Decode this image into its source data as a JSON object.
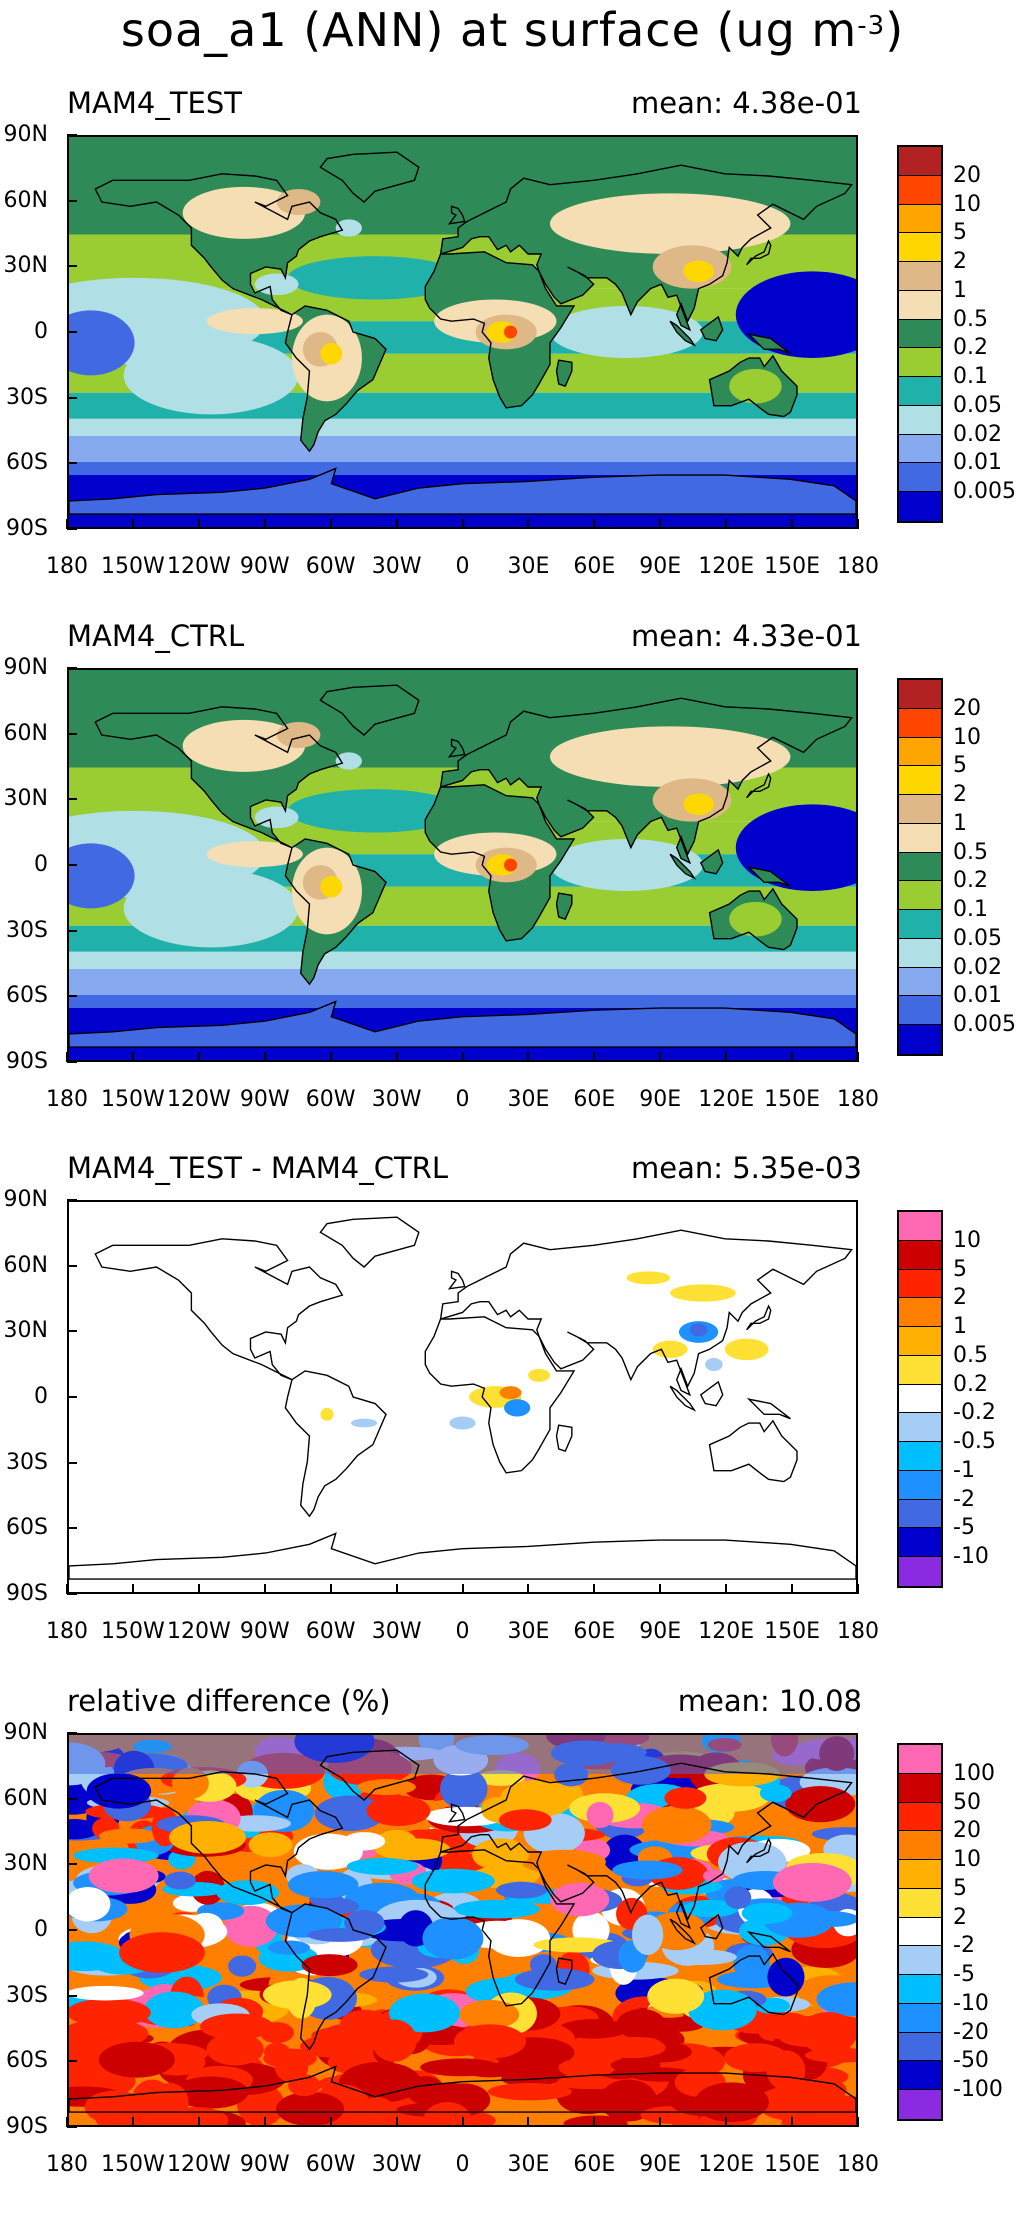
{
  "figure": {
    "title": "soa_a1 (ANN) at surface (ug m",
    "title_superscript": "-3",
    "title_close": ")"
  },
  "lat_labels": [
    "90N",
    "60N",
    "30N",
    "0",
    "30S",
    "60S",
    "90S"
  ],
  "lon_labels": [
    "180",
    "150W",
    "120W",
    "90W",
    "60W",
    "30W",
    "0",
    "30E",
    "60E",
    "90E",
    "120E",
    "150E",
    "180"
  ],
  "panels": [
    {
      "title": "MAM4_TEST",
      "mean": "mean: 4.38e-01",
      "field": "absolute",
      "colorbar": {
        "colors": [
          "#b22222",
          "#ff4500",
          "#ffa500",
          "#ffd700",
          "#deb887",
          "#f5deb3",
          "#2e8b57",
          "#9acd32",
          "#20b2aa",
          "#b0e0e6",
          "#87a9f0",
          "#4169e1",
          "#0000cd"
        ],
        "labels": [
          "20",
          "10",
          "5",
          "2",
          "1",
          "0.5",
          "0.2",
          "0.1",
          "0.05",
          "0.02",
          "0.01",
          "0.005"
        ]
      }
    },
    {
      "title": "MAM4_CTRL",
      "mean": "mean: 4.33e-01",
      "field": "absolute",
      "colorbar": {
        "colors": [
          "#b22222",
          "#ff4500",
          "#ffa500",
          "#ffd700",
          "#deb887",
          "#f5deb3",
          "#2e8b57",
          "#9acd32",
          "#20b2aa",
          "#b0e0e6",
          "#87a9f0",
          "#4169e1",
          "#0000cd"
        ],
        "labels": [
          "20",
          "10",
          "5",
          "2",
          "1",
          "0.5",
          "0.2",
          "0.1",
          "0.05",
          "0.02",
          "0.01",
          "0.005"
        ]
      }
    },
    {
      "title": "MAM4_TEST - MAM4_CTRL",
      "mean": "mean: 5.35e-03",
      "field": "difference",
      "colorbar": {
        "colors": [
          "#ff69b4",
          "#cd0000",
          "#ff2400",
          "#ff7f00",
          "#ffb000",
          "#ffe135",
          "#ffffff",
          "#a5cdf5",
          "#00bfff",
          "#1e90ff",
          "#4169e1",
          "#0000cd",
          "#8a2be2"
        ],
        "labels": [
          "10",
          "5",
          "2",
          "1",
          "0.5",
          "0.2",
          "-0.2",
          "-0.5",
          "-1",
          "-2",
          "-5",
          "-10"
        ]
      }
    },
    {
      "title": "relative difference (%)",
      "mean": "mean: 10.08",
      "field": "relative",
      "colorbar": {
        "colors": [
          "#ff69b4",
          "#cd0000",
          "#ff2400",
          "#ff7f00",
          "#ffb000",
          "#ffe135",
          "#ffffff",
          "#a5cdf5",
          "#00bfff",
          "#1e90ff",
          "#4169e1",
          "#0000cd",
          "#8a2be2"
        ],
        "labels": [
          "100",
          "50",
          "20",
          "10",
          "5",
          "2",
          "-2",
          "-5",
          "-10",
          "-20",
          "-50",
          "-100"
        ]
      }
    }
  ]
}
